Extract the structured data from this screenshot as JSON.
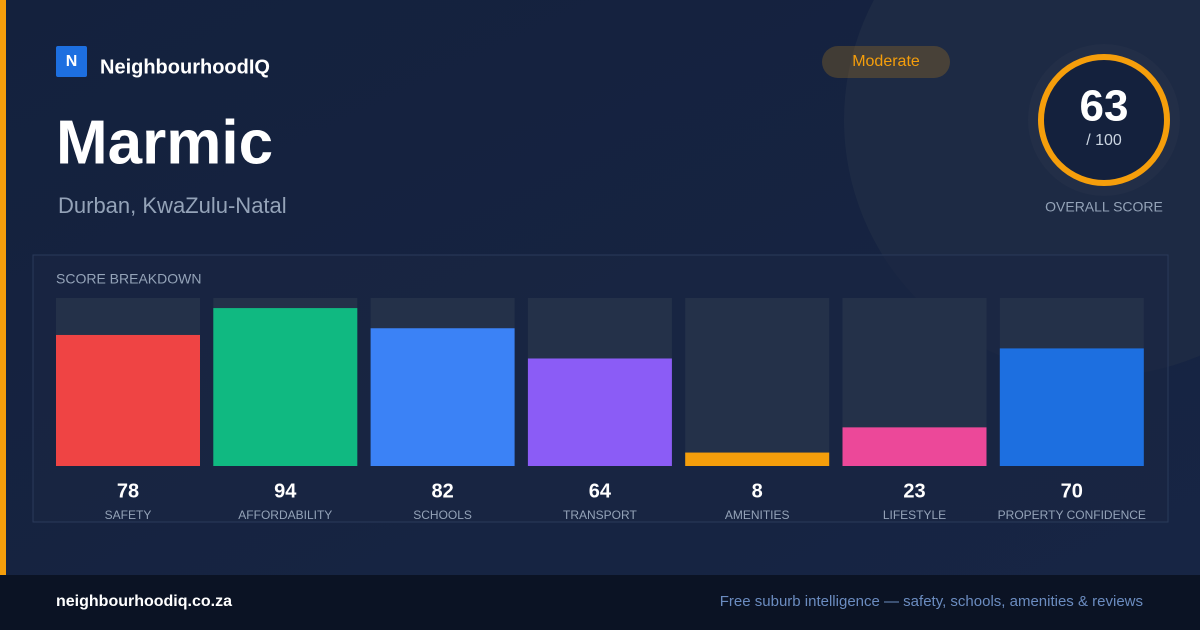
{
  "brand": {
    "logo": "N",
    "name": "NeighbourhoodIQ"
  },
  "suburb": "Marmic",
  "location": "Durban, KwaZulu-Natal",
  "badge": "Moderate",
  "score": {
    "value": 63,
    "out_of": "/ 100",
    "label": "OVERALL SCORE"
  },
  "chart_data": {
    "type": "bar",
    "title": "SCORE BREAKDOWN",
    "categories": [
      "SAFETY",
      "AFFORDABILITY",
      "SCHOOLS",
      "TRANSPORT",
      "AMENITIES",
      "LIFESTYLE",
      "PROPERTY CONFIDENCE"
    ],
    "values": [
      78,
      94,
      82,
      64,
      8,
      23,
      70
    ],
    "colors": [
      "#ef4444",
      "#10b981",
      "#3b82f6",
      "#8b5cf6",
      "#f59e0b",
      "#ec4899",
      "#1d6fe0"
    ],
    "ylim": [
      0,
      100
    ]
  },
  "footer": {
    "url": "neighbourhoodiq.co.za",
    "tagline": "Free suburb intelligence — safety, schools, amenities & reviews"
  }
}
